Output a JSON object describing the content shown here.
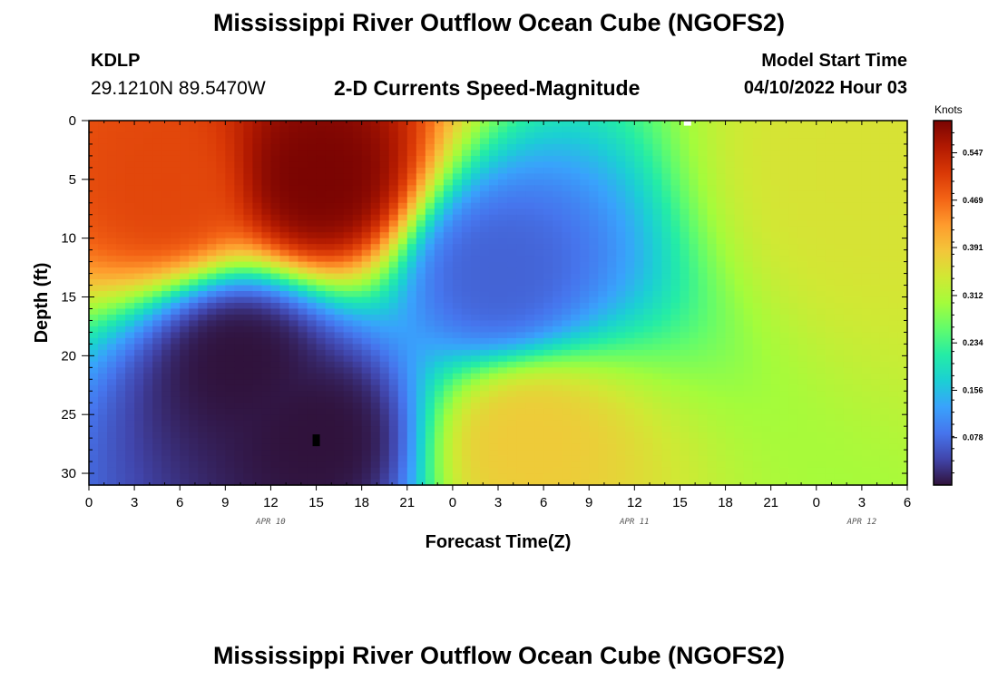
{
  "header": {
    "title": "Mississippi River Outflow Ocean Cube (NGOFS2)",
    "station_id": "KDLP",
    "station_coords": "29.1210N  89.5470W",
    "plot_title": "2-D Currents Speed-Magnitude",
    "model_start_label": "Model Start Time",
    "model_start_value": "04/10/2022 Hour 03"
  },
  "footer": {
    "title": "Mississippi River Outflow Ocean Cube (NGOFS2)"
  },
  "chart_data": {
    "type": "heatmap",
    "xlabel": "Forecast Time(Z)",
    "ylabel": "Depth (ft)",
    "x_unit": "hours since 04/10 00Z",
    "xlim": [
      0,
      54
    ],
    "ylim": [
      31,
      0
    ],
    "x_tick_labels": [
      "0",
      "3",
      "6",
      "9",
      "12",
      "15",
      "18",
      "21",
      "0",
      "3",
      "6",
      "9",
      "12",
      "15",
      "18",
      "21",
      "0",
      "3",
      "6"
    ],
    "y_ticks": [
      0,
      5,
      10,
      15,
      20,
      25,
      30
    ],
    "day_labels": [
      {
        "label": "APR 10",
        "x": 12
      },
      {
        "label": "APR 11",
        "x": 36
      },
      {
        "label": "APR 12",
        "x": 51
      }
    ],
    "colorbar": {
      "title": "Knots",
      "ticks": [
        0.078,
        0.156,
        0.234,
        0.312,
        0.391,
        0.469,
        0.547
      ],
      "range": [
        0,
        0.6
      ],
      "colors": [
        "#30123b",
        "#4145ab",
        "#4675ed",
        "#39a2fc",
        "#1bcfd4",
        "#24eca6",
        "#61fc6c",
        "#a4fc3b",
        "#d1e834",
        "#f3c63a",
        "#fe9b2d",
        "#f36315",
        "#d93806",
        "#b11901",
        "#7a0402"
      ]
    },
    "features": [
      {
        "x": 5,
        "y": 6,
        "value": 0.5
      },
      {
        "x": 15.2,
        "y": 5,
        "value": 0.6
      },
      {
        "x": 51,
        "y": 4,
        "value": 0.35
      },
      {
        "x": 10,
        "y": 20.5,
        "value": 0.0
      },
      {
        "x": 15,
        "y": 27,
        "value": 0.0
      },
      {
        "x": 27,
        "y": 13,
        "value": 0.07
      },
      {
        "x": 29,
        "y": 27.5,
        "value": 0.38
      }
    ],
    "markers": [
      {
        "x": 39.5,
        "y": 0.2,
        "color": "#ffffff"
      },
      {
        "x": 15,
        "y": 27,
        "color": "#000000"
      }
    ]
  }
}
